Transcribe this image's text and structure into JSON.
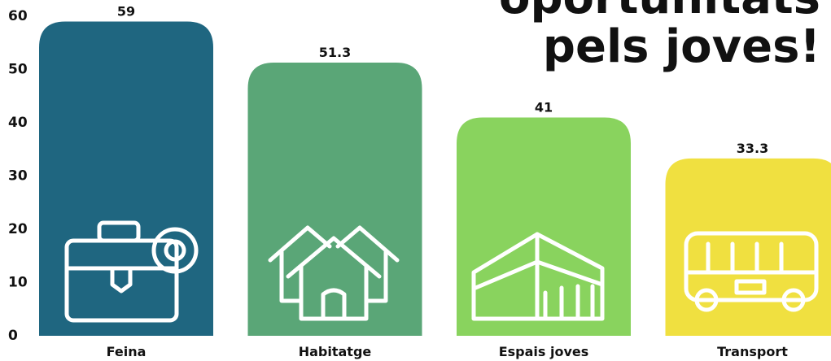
{
  "chart_data": {
    "type": "bar",
    "title_lines": [
      "oportunitats",
      "pels joves!"
    ],
    "categories": [
      "Feina",
      "Habitatge",
      "Espais joves",
      "Transport"
    ],
    "values": [
      59,
      51.3,
      41,
      33.3
    ],
    "colors": [
      "#1f6680",
      "#5aa677",
      "#89d35e",
      "#f0e040"
    ],
    "ylim": [
      0,
      60
    ],
    "yticks": [
      0,
      10,
      20,
      30,
      40,
      50,
      60
    ],
    "grid": false
  }
}
